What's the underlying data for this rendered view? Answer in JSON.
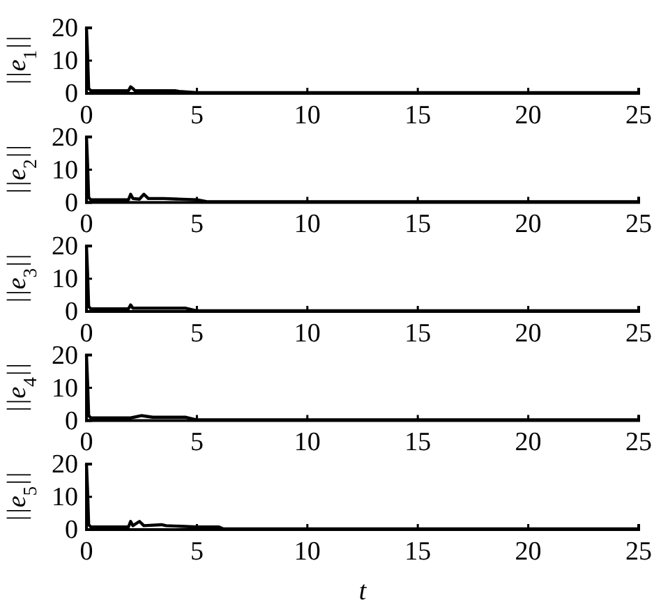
{
  "chart_data": [
    {
      "type": "line",
      "ylabel": "||e$_{1}$||",
      "x": [
        0,
        0.05,
        0.1,
        0.2,
        1.9,
        2,
        2.1,
        2.2,
        4,
        4.2,
        5,
        25
      ],
      "series": [
        {
          "color": "#000000",
          "values": [
            20,
            12,
            1.5,
            0.8,
            0.8,
            2,
            1.5,
            0.8,
            0.8,
            0.6,
            0.2,
            0.2
          ]
        }
      ],
      "xlim": [
        0,
        25
      ],
      "ylim": [
        0,
        20
      ],
      "xticks": [
        0,
        5,
        10,
        15,
        20,
        25
      ],
      "yticks": [
        0,
        10,
        20
      ],
      "grid": false,
      "marker": "none",
      "line_style": "solid"
    },
    {
      "type": "line",
      "ylabel": "||e$_{2}$||",
      "x": [
        0,
        0.05,
        0.1,
        0.2,
        1.9,
        2,
        2.1,
        2.4,
        2.6,
        2.8,
        3.5,
        5,
        5.5,
        25
      ],
      "series": [
        {
          "color": "#000000",
          "values": [
            20,
            12,
            1.5,
            0.8,
            0.8,
            2.5,
            1.2,
            1,
            2.5,
            1.2,
            1.2,
            0.8,
            0.2,
            0.2
          ]
        }
      ],
      "xlim": [
        0,
        25
      ],
      "ylim": [
        0,
        20
      ],
      "xticks": [
        0,
        5,
        10,
        15,
        20,
        25
      ],
      "yticks": [
        0,
        10,
        20
      ],
      "grid": false,
      "marker": "none",
      "line_style": "solid"
    },
    {
      "type": "line",
      "ylabel": "||e$_{3}$||",
      "x": [
        0,
        0.05,
        0.1,
        0.2,
        1.9,
        2,
        2.1,
        3,
        4.5,
        5,
        25
      ],
      "series": [
        {
          "color": "#000000",
          "values": [
            20,
            12,
            1.5,
            0.8,
            0.8,
            2,
            1,
            1,
            1,
            0.2,
            0.2
          ]
        }
      ],
      "xlim": [
        0,
        25
      ],
      "ylim": [
        0,
        20
      ],
      "xticks": [
        0,
        5,
        10,
        15,
        20,
        25
      ],
      "yticks": [
        0,
        10,
        20
      ],
      "grid": false,
      "marker": "none",
      "line_style": "solid"
    },
    {
      "type": "line",
      "ylabel": "||e$_{4}$||",
      "x": [
        0,
        0.05,
        0.1,
        0.2,
        2,
        2.5,
        3,
        4.5,
        5,
        25
      ],
      "series": [
        {
          "color": "#000000",
          "values": [
            20,
            12,
            1.5,
            0.8,
            0.8,
            1.5,
            1,
            1,
            0.2,
            0.2
          ]
        }
      ],
      "xlim": [
        0,
        25
      ],
      "ylim": [
        0,
        20
      ],
      "xticks": [
        0,
        5,
        10,
        15,
        20,
        25
      ],
      "yticks": [
        0,
        10,
        20
      ],
      "grid": false,
      "marker": "none",
      "line_style": "solid"
    },
    {
      "type": "line",
      "xlabel": "t",
      "ylabel": "||e$_{5}$||",
      "x": [
        0,
        0.05,
        0.1,
        0.2,
        1.9,
        2,
        2.1,
        2.4,
        2.6,
        3.4,
        3.6,
        5,
        6,
        6.2,
        25
      ],
      "series": [
        {
          "color": "#000000",
          "values": [
            20,
            12,
            1.5,
            0.8,
            0.8,
            2.5,
            1.2,
            2.5,
            1.2,
            1.5,
            1.2,
            0.8,
            0.8,
            0.2,
            0.2
          ]
        }
      ],
      "xlim": [
        0,
        25
      ],
      "ylim": [
        0,
        20
      ],
      "xticks": [
        0,
        5,
        10,
        15,
        20,
        25
      ],
      "yticks": [
        0,
        10,
        20
      ],
      "grid": false,
      "marker": "none",
      "line_style": "solid"
    }
  ]
}
